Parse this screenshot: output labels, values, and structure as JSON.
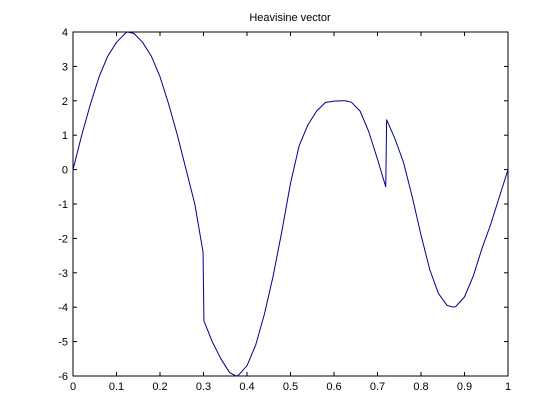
{
  "chart_data": {
    "type": "line",
    "title": "Heavisine vector",
    "xlabel": "",
    "ylabel": "",
    "xlim": [
      0,
      1
    ],
    "ylim": [
      -6,
      4
    ],
    "xticks": [
      0,
      0.1,
      0.2,
      0.3,
      0.4,
      0.5,
      0.6,
      0.7,
      0.8,
      0.9,
      1
    ],
    "xtick_labels": [
      "0",
      "0.1",
      "0.2",
      "0.3",
      "0.4",
      "0.5",
      "0.6",
      "0.7",
      "0.8",
      "0.9",
      "1"
    ],
    "yticks": [
      4,
      3,
      2,
      1,
      0,
      -1,
      -2,
      -3,
      -4,
      -5,
      -6
    ],
    "ytick_labels": [
      "4",
      "3",
      "2",
      "1",
      "0",
      "-1",
      "-2",
      "-3",
      "-4",
      "-5",
      "-6"
    ],
    "grid": false,
    "box": true,
    "series": [
      {
        "color": "#00008B",
        "x": [
          0,
          0.02,
          0.04,
          0.06,
          0.08,
          0.1,
          0.12,
          0.125,
          0.14,
          0.16,
          0.18,
          0.2,
          0.22,
          0.24,
          0.26,
          0.28,
          0.299,
          0.301,
          0.32,
          0.34,
          0.36,
          0.375,
          0.38,
          0.4,
          0.42,
          0.44,
          0.46,
          0.48,
          0.5,
          0.52,
          0.54,
          0.56,
          0.58,
          0.6,
          0.62,
          0.625,
          0.64,
          0.66,
          0.68,
          0.7,
          0.719,
          0.721,
          0.74,
          0.76,
          0.78,
          0.8,
          0.82,
          0.84,
          0.86,
          0.875,
          0.88,
          0.9,
          0.92,
          0.94,
          0.96,
          0.98,
          1
        ],
        "y": [
          0,
          1.0,
          1.9,
          2.7,
          3.3,
          3.7,
          3.96,
          4.0,
          3.96,
          3.7,
          3.3,
          2.7,
          1.9,
          1.0,
          0,
          -1.0,
          -2.4,
          -4.4,
          -5.0,
          -5.5,
          -5.9,
          -6.0,
          -5.98,
          -5.7,
          -5.1,
          -4.2,
          -3.1,
          -1.8,
          -0.4,
          0.7,
          1.3,
          1.7,
          1.95,
          1.99,
          2.0,
          2.0,
          1.96,
          1.7,
          1.1,
          0.3,
          -0.5,
          1.45,
          0.9,
          0.2,
          -0.8,
          -1.9,
          -2.9,
          -3.6,
          -3.95,
          -4.0,
          -3.98,
          -3.7,
          -3.1,
          -2.3,
          -1.6,
          -0.8,
          0
        ]
      }
    ]
  }
}
